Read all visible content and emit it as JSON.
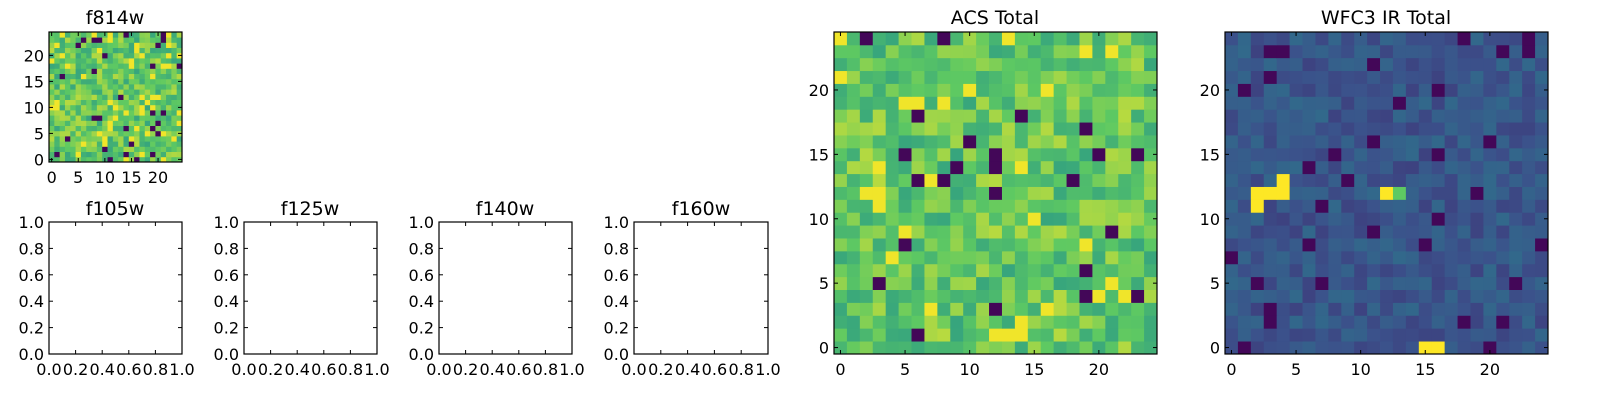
{
  "palette": {
    "viridis": [
      "#440154",
      "#3b528b",
      "#21918c",
      "#5ec962",
      "#fde725"
    ]
  },
  "chart_data": [
    {
      "panel": "f814w",
      "type": "heatmap",
      "title": "f814w",
      "colormap": "viridis",
      "size": 25,
      "xlim": [
        -0.5,
        24.5
      ],
      "ylim": [
        -0.5,
        24.5
      ],
      "xticks": [
        0,
        5,
        10,
        15,
        20
      ],
      "yticks": [
        0,
        5,
        10,
        15,
        20
      ],
      "value_range": [
        0,
        1
      ],
      "texture": {
        "mean": 0.74,
        "spread": 0.15,
        "dark_fraction": 0.05,
        "bright_fraction": 0.08,
        "seed": 11
      }
    },
    {
      "panel": "f105w",
      "type": "heatmap",
      "title": "f105w",
      "empty": true,
      "xlim": [
        0,
        1
      ],
      "ylim": [
        0,
        1
      ],
      "xticks": [
        "0.0",
        "0.2",
        "0.4",
        "0.6",
        "0.8",
        "1.0"
      ],
      "yticks": [
        "0.0",
        "0.2",
        "0.4",
        "0.6",
        "0.8",
        "1.0"
      ]
    },
    {
      "panel": "f125w",
      "type": "heatmap",
      "title": "f125w",
      "empty": true,
      "xlim": [
        0,
        1
      ],
      "ylim": [
        0,
        1
      ],
      "xticks": [
        "0.0",
        "0.2",
        "0.4",
        "0.6",
        "0.8",
        "1.0"
      ],
      "yticks": [
        "0.0",
        "0.2",
        "0.4",
        "0.6",
        "0.8",
        "1.0"
      ]
    },
    {
      "panel": "f140w",
      "type": "heatmap",
      "title": "f140w",
      "empty": true,
      "xlim": [
        0,
        1
      ],
      "ylim": [
        0,
        1
      ],
      "xticks": [
        "0.0",
        "0.2",
        "0.4",
        "0.6",
        "0.8",
        "1.0"
      ],
      "yticks": [
        "0.0",
        "0.2",
        "0.4",
        "0.6",
        "0.8",
        "1.0"
      ]
    },
    {
      "panel": "f160w",
      "type": "heatmap",
      "title": "f160w",
      "empty": true,
      "xlim": [
        0,
        1
      ],
      "ylim": [
        0,
        1
      ],
      "xticks": [
        "0.0",
        "0.2",
        "0.4",
        "0.6",
        "0.8",
        "1.0"
      ],
      "yticks": [
        "0.0",
        "0.2",
        "0.4",
        "0.6",
        "0.8",
        "1.0"
      ]
    },
    {
      "panel": "acs_total",
      "type": "heatmap",
      "title": "ACS Total",
      "colormap": "viridis",
      "size": 25,
      "xlim": [
        -0.5,
        24.5
      ],
      "ylim": [
        -0.5,
        24.5
      ],
      "xticks": [
        0,
        5,
        10,
        15,
        20
      ],
      "yticks": [
        0,
        5,
        10,
        15,
        20
      ],
      "value_range": [
        0,
        1
      ],
      "texture": {
        "mean": 0.74,
        "spread": 0.15,
        "dark_fraction": 0.035,
        "bright_fraction": 0.06,
        "seed": 23
      }
    },
    {
      "panel": "wfc3_ir_total",
      "type": "heatmap",
      "title": "WFC3 IR Total",
      "colormap": "viridis",
      "size": 25,
      "xlim": [
        -0.5,
        24.5
      ],
      "ylim": [
        -0.5,
        24.5
      ],
      "xticks": [
        0,
        5,
        10,
        15,
        20
      ],
      "yticks": [
        0,
        5,
        10,
        15,
        20
      ],
      "value_range": [
        0,
        1
      ],
      "texture": {
        "mean": 0.27,
        "spread": 0.07,
        "dark_fraction": 0.05,
        "bright_fraction": 0.0,
        "seed": 37
      },
      "highlight_cells": [
        {
          "x": 2,
          "y": 11,
          "value": 1.0
        },
        {
          "x": 2,
          "y": 12,
          "value": 1.0
        },
        {
          "x": 3,
          "y": 12,
          "value": 1.0
        },
        {
          "x": 4,
          "y": 12,
          "value": 1.0
        },
        {
          "x": 4,
          "y": 13,
          "value": 1.0
        },
        {
          "x": 12,
          "y": 12,
          "value": 1.0
        },
        {
          "x": 13,
          "y": 12,
          "value": 0.75
        },
        {
          "x": 15,
          "y": 0,
          "value": 1.0
        },
        {
          "x": 16,
          "y": 0,
          "value": 1.0
        }
      ]
    }
  ]
}
